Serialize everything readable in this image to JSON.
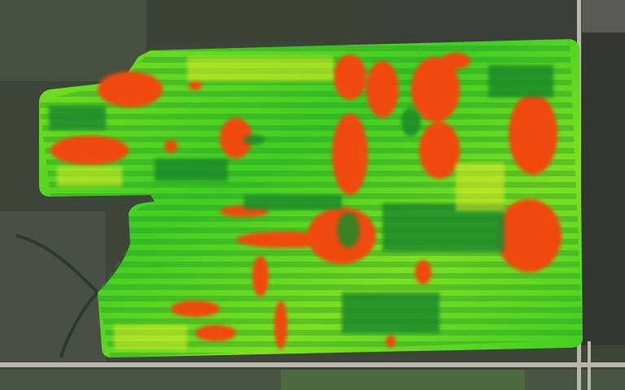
{
  "map": {
    "type": "aerial-vegetation-index-overlay",
    "colors": {
      "high_vigor": "#1e8a2c",
      "mid_high": "#3cd21e",
      "mid": "#c8f01e",
      "low_mid": "#f0f028",
      "low_vigor": "#f04a0a",
      "road": "#b9b7ad",
      "background": "#3d4438"
    }
  }
}
